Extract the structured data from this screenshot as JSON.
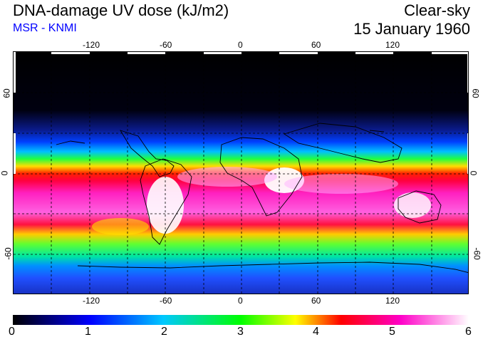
{
  "header": {
    "title": "DNA-damage UV dose (kJ/m2)",
    "subtitle": "MSR - KNMI",
    "condition": "Clear-sky",
    "date": "15 January 1960"
  },
  "colors": {
    "subtitle": "#0000ff",
    "scale": [
      "#000000",
      "#0000ff",
      "#00c8ff",
      "#00ff00",
      "#ffff00",
      "#ff0000",
      "#ff00c8",
      "#ffffff"
    ]
  },
  "map": {
    "lon_ticks": [
      "-120",
      "-60",
      "0",
      "60",
      "120"
    ],
    "lat_ticks_left": [
      "60",
      "0",
      "-60"
    ],
    "lat_ticks_right": [
      "60",
      "0",
      "-60"
    ]
  },
  "colorbar": {
    "labels": [
      "0",
      "1",
      "2",
      "3",
      "4",
      "5",
      "6"
    ],
    "min": 0,
    "max": 6
  }
}
